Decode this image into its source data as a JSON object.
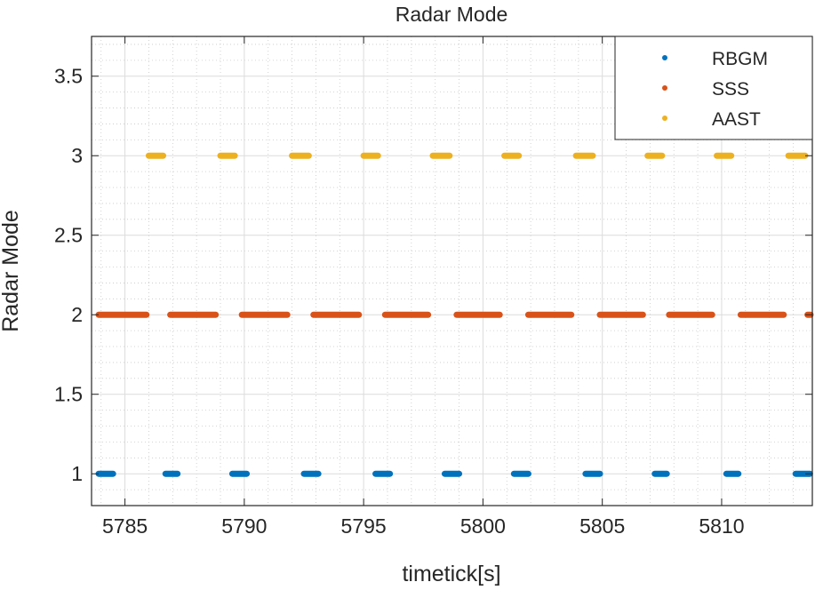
{
  "chart_data": {
    "type": "scatter",
    "title": "Radar Mode",
    "xlabel": "timetick[s]",
    "ylabel": "Radar Mode",
    "xlim": [
      5783.6,
      5813.8
    ],
    "ylim": [
      0.8,
      3.75
    ],
    "xticks": [
      5785,
      5790,
      5795,
      5800,
      5805,
      5810
    ],
    "xtick_labels": [
      "5785",
      "5790",
      "5795",
      "5800",
      "5805",
      "5810"
    ],
    "yticks": [
      1,
      1.5,
      2,
      2.5,
      3,
      3.5
    ],
    "ytick_labels": [
      "1",
      "1.5",
      "2",
      "2.5",
      "3",
      "3.5"
    ],
    "grid": true,
    "minor_grid": true,
    "legend_position": "top-right",
    "series": [
      {
        "name": "RBGM",
        "color": "#0072BD",
        "y": 1,
        "segments": [
          [
            5783.9,
            5784.5
          ],
          [
            5786.7,
            5787.2
          ],
          [
            5789.5,
            5790.1
          ],
          [
            5792.5,
            5793.1
          ],
          [
            5795.5,
            5796.1
          ],
          [
            5798.4,
            5799.0
          ],
          [
            5801.3,
            5801.9
          ],
          [
            5804.3,
            5804.9
          ],
          [
            5807.2,
            5807.7
          ],
          [
            5810.2,
            5810.7
          ],
          [
            5813.1,
            5813.7
          ]
        ]
      },
      {
        "name": "SSS",
        "color": "#D95319",
        "y": 2,
        "segments": [
          [
            5783.9,
            5785.9
          ],
          [
            5786.9,
            5788.8
          ],
          [
            5789.9,
            5791.8
          ],
          [
            5792.9,
            5794.8
          ],
          [
            5795.9,
            5797.7
          ],
          [
            5798.9,
            5800.7
          ],
          [
            5801.9,
            5803.7
          ],
          [
            5804.9,
            5806.7
          ],
          [
            5807.8,
            5809.6
          ],
          [
            5810.8,
            5812.6
          ],
          [
            5813.6,
            5813.8
          ]
        ]
      },
      {
        "name": "AAST",
        "color": "#EDB120",
        "y": 3,
        "segments": [
          [
            5786.0,
            5786.6
          ],
          [
            5789.0,
            5789.6
          ],
          [
            5792.0,
            5792.7
          ],
          [
            5795.0,
            5795.6
          ],
          [
            5797.9,
            5798.6
          ],
          [
            5800.9,
            5801.5
          ],
          [
            5803.9,
            5804.6
          ],
          [
            5806.9,
            5807.5
          ],
          [
            5809.8,
            5810.4
          ],
          [
            5812.8,
            5813.5
          ]
        ]
      }
    ]
  }
}
